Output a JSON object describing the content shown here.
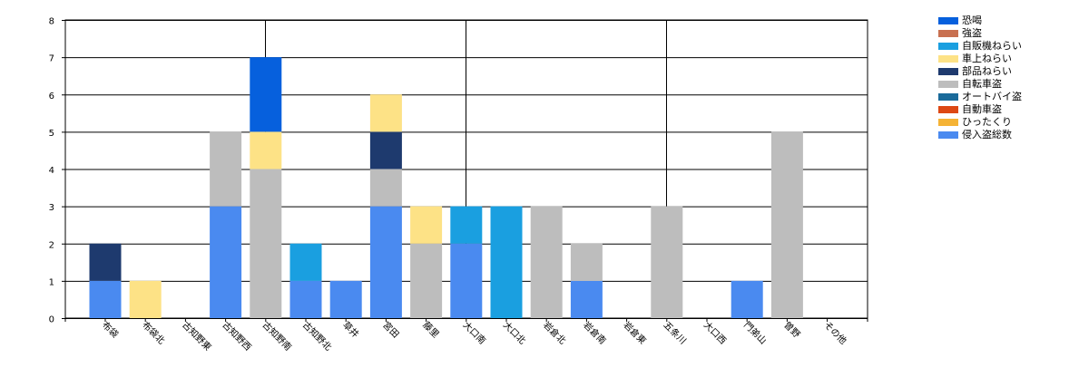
{
  "chart_data": {
    "type": "bar",
    "stacked": true,
    "title": "",
    "xlabel": "",
    "ylabel": "",
    "ylim": [
      0,
      8
    ],
    "yticks": [
      0,
      1,
      2,
      3,
      4,
      5,
      6,
      7,
      8
    ],
    "grid": true,
    "legend_position": "top-right",
    "categories": [
      "布袋",
      "布袋北",
      "古知野東",
      "古知野西",
      "古知野南",
      "古知野北",
      "草井",
      "宮田",
      "藤里",
      "大口南",
      "大口北",
      "岩倉北",
      "岩倉南",
      "岩倉東",
      "五条川",
      "大口西",
      "門弟山",
      "曽野",
      "その他"
    ],
    "series": [
      {
        "name": "侵入盗総数",
        "color": "#4a8af0",
        "values": [
          1,
          0,
          0,
          3,
          0,
          1,
          1,
          3,
          0,
          2,
          0,
          0,
          1,
          0,
          0,
          0,
          1,
          0,
          0
        ]
      },
      {
        "name": "ひったくり",
        "color": "#f5b335",
        "values": [
          0,
          0,
          0,
          0,
          0,
          0,
          0,
          0,
          0,
          0,
          0,
          0,
          0,
          0,
          0,
          0,
          0,
          0,
          0
        ]
      },
      {
        "name": "自動車盗",
        "color": "#dd4814",
        "values": [
          0,
          0,
          0,
          0,
          0,
          0,
          0,
          0,
          0,
          0,
          0,
          0,
          0,
          0,
          0,
          0,
          0,
          0,
          0
        ]
      },
      {
        "name": "オートバイ盗",
        "color": "#1a6a9a",
        "values": [
          0,
          0,
          0,
          0,
          0,
          0,
          0,
          0,
          0,
          0,
          0,
          0,
          0,
          0,
          0,
          0,
          0,
          0,
          0
        ]
      },
      {
        "name": "自転車盗",
        "color": "#bdbdbd",
        "values": [
          0,
          0,
          0,
          2,
          4,
          0,
          0,
          1,
          2,
          0,
          0,
          3,
          1,
          0,
          3,
          0,
          0,
          5,
          0
        ]
      },
      {
        "name": "部品ねらい",
        "color": "#1e3a6e",
        "values": [
          1,
          0,
          0,
          0,
          0,
          0,
          0,
          1,
          0,
          0,
          0,
          0,
          0,
          0,
          0,
          0,
          0,
          0,
          0
        ]
      },
      {
        "name": "車上ねらい",
        "color": "#fde286",
        "values": [
          0,
          1,
          0,
          0,
          1,
          0,
          0,
          1,
          1,
          0,
          0,
          0,
          0,
          0,
          0,
          0,
          0,
          0,
          0
        ]
      },
      {
        "name": "自販機ねらい",
        "color": "#1a9fe0",
        "values": [
          0,
          0,
          0,
          0,
          0,
          1,
          0,
          0,
          0,
          1,
          3,
          0,
          0,
          0,
          0,
          0,
          0,
          0,
          0
        ]
      },
      {
        "name": "強盗",
        "color": "#c87050",
        "values": [
          0,
          0,
          0,
          0,
          0,
          0,
          0,
          0,
          0,
          0,
          0,
          0,
          0,
          0,
          0,
          0,
          0,
          0,
          0
        ]
      },
      {
        "name": "恐喝",
        "color": "#0660dd",
        "values": [
          0,
          0,
          0,
          0,
          2,
          0,
          0,
          0,
          0,
          0,
          0,
          0,
          0,
          0,
          0,
          0,
          0,
          0,
          0
        ]
      }
    ],
    "legend_order": [
      "恐喝",
      "強盗",
      "自販機ねらい",
      "車上ねらい",
      "部品ねらい",
      "自転車盗",
      "オートバイ盗",
      "自動車盗",
      "ひったくり",
      "侵入盗総数"
    ]
  }
}
